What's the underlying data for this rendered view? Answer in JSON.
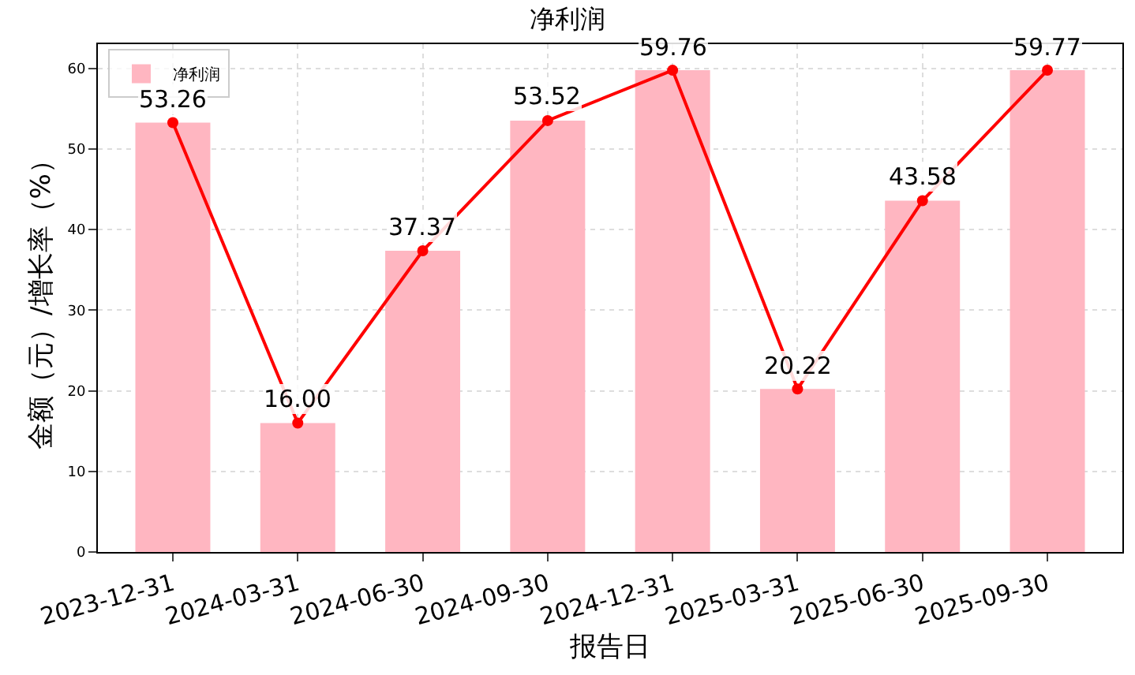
{
  "chart_data": {
    "type": "bar",
    "title": "净利润",
    "xlabel": "报告日",
    "ylabel": "金额（元）/增长率（%）",
    "categories": [
      "2023-12-31",
      "2024-03-31",
      "2024-06-30",
      "2024-09-30",
      "2024-12-31",
      "2025-03-31",
      "2025-06-30",
      "2025-09-30"
    ],
    "series": [
      {
        "name": "净利润",
        "color": "#ffb6c1",
        "values": [
          53.26,
          16.0,
          37.37,
          53.52,
          59.76,
          20.22,
          43.58,
          59.77
        ],
        "value_labels": [
          "53.26",
          "16.00",
          "37.37",
          "53.52",
          "59.76",
          "20.22",
          "43.58",
          "59.77"
        ]
      },
      {
        "type": "line",
        "color": "#ff0000",
        "values": [
          53.26,
          16.0,
          37.37,
          53.52,
          59.76,
          20.22,
          43.58,
          59.77
        ]
      }
    ],
    "marker": "circle",
    "line_style": "solid",
    "ylim": [
      0,
      63
    ],
    "yticks": [
      0,
      10,
      20,
      30,
      40,
      50,
      60
    ],
    "grid": true,
    "legend": "top left"
  }
}
